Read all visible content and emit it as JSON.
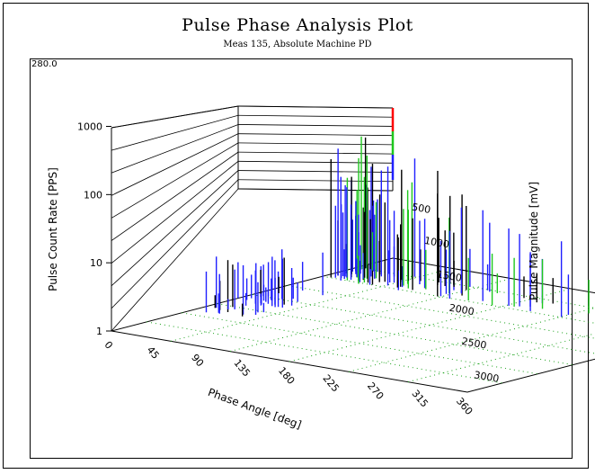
{
  "title": "Pulse Phase Analysis Plot",
  "subtitle": "Meas 135, Absolute Machine PD",
  "chart_data": {
    "type": "bar",
    "variant": "3d-histogram",
    "title": "Pulse Phase Analysis Plot",
    "subtitle": "Meas 135, Absolute Machine PD",
    "corner_label": "280.0",
    "xlabel": "Phase Angle [deg]",
    "ylabel": "Pulse Count Rate [PPS]",
    "zlabel": "Pulse Magnitude [mV]",
    "x_ticks": [
      "0",
      "45",
      "90",
      "135",
      "180",
      "225",
      "270",
      "315",
      "360"
    ],
    "y_ticks": [
      "1",
      "10",
      "100",
      "1000"
    ],
    "z_ticks": [
      "500",
      "1000",
      "1500",
      "2000",
      "2500",
      "3000"
    ],
    "y_scale": "log",
    "grid": true,
    "colors": {
      "blue": "#1f1fff",
      "green": "#1ec81e",
      "black": "#000000",
      "red": "#ff0000",
      "grid": "#16a016"
    }
  }
}
